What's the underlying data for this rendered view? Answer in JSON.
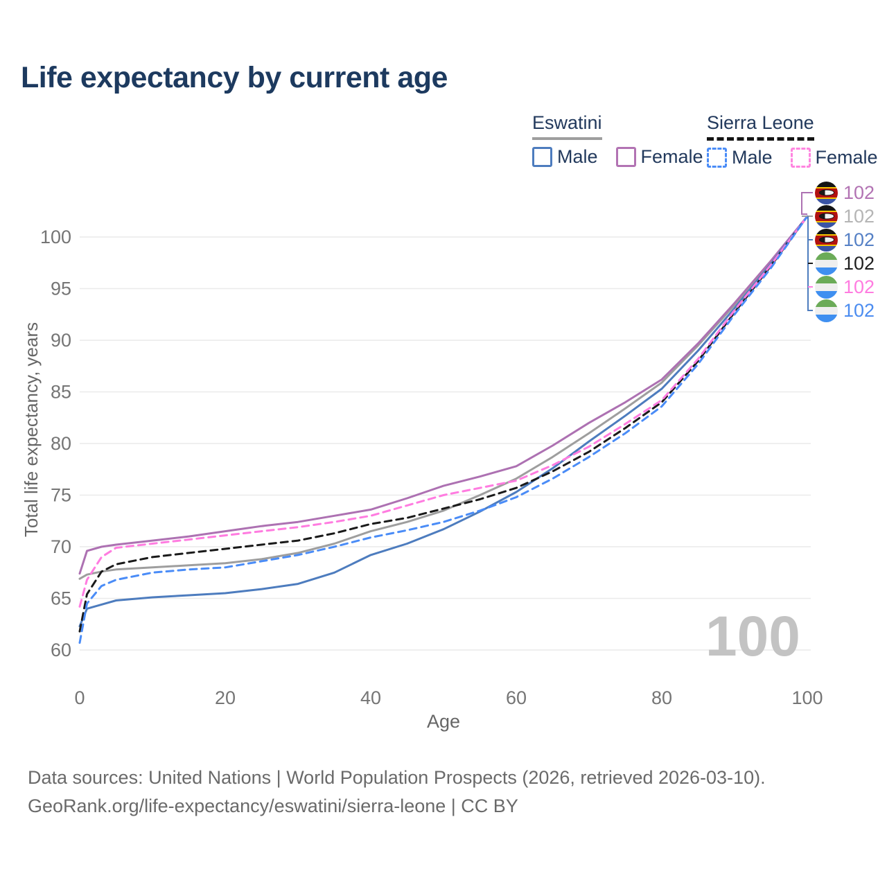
{
  "title": "Life expectancy by current age",
  "legend": {
    "eswatini": {
      "header": "Eswatini",
      "male_label": "Male",
      "female_label": "Female"
    },
    "sierra_leone": {
      "header": "Sierra Leone",
      "male_label": "Male",
      "female_label": "Female"
    }
  },
  "right_labels": [
    {
      "flag": "eswatini",
      "value": "102",
      "color": "#b273b3"
    },
    {
      "flag": "eswatini",
      "value": "102",
      "color": "#b5b5b5"
    },
    {
      "flag": "eswatini",
      "value": "102",
      "color": "#5580c5"
    },
    {
      "flag": "sierra-leone",
      "value": "102",
      "color": "#1f1f1f"
    },
    {
      "flag": "sierra-leone",
      "value": "102",
      "color": "#ff7ce0"
    },
    {
      "flag": "sierra-leone",
      "value": "102",
      "color": "#4b8cf0"
    }
  ],
  "watermark": "100",
  "footer": {
    "line1": "Data sources: United Nations | World Population Prospects (2026, retrieved 2026-03-10).",
    "line2": "GeoRank.org/life-expectancy/eswatini/sierra-leone | CC BY"
  },
  "chart_data": {
    "type": "line",
    "title": "Life expectancy by current age",
    "xlabel": "Age",
    "ylabel": "Total life expectancy, years",
    "xlim": [
      0,
      100
    ],
    "ylim": [
      60,
      102.5
    ],
    "xticks": [
      0,
      20,
      40,
      60,
      80,
      100
    ],
    "yticks": [
      60,
      65,
      70,
      75,
      80,
      85,
      90,
      95,
      100
    ],
    "grid": true,
    "legend_position": "top-right",
    "ages": [
      0,
      1,
      3,
      5,
      10,
      15,
      20,
      25,
      30,
      35,
      40,
      45,
      50,
      55,
      60,
      65,
      70,
      75,
      80,
      85,
      90,
      95,
      100
    ],
    "series": [
      {
        "name": "Eswatini Both sexes",
        "color": "#9e9e9e",
        "dashed": false,
        "values": [
          66.9,
          67.3,
          67.6,
          67.8,
          68.0,
          68.2,
          68.4,
          68.8,
          69.4,
          70.3,
          71.5,
          72.4,
          73.5,
          75.0,
          76.6,
          78.7,
          81.0,
          83.4,
          85.9,
          89.5,
          93.4,
          97.5,
          102
        ]
      },
      {
        "name": "Eswatini Female",
        "color": "#ad71b2",
        "dashed": false,
        "values": [
          67.4,
          69.6,
          70.0,
          70.2,
          70.6,
          71.0,
          71.5,
          72.0,
          72.4,
          73.0,
          73.6,
          74.7,
          75.9,
          76.8,
          77.8,
          79.8,
          82.0,
          84.0,
          86.2,
          89.7,
          93.6,
          97.7,
          102
        ]
      },
      {
        "name": "Eswatini Male",
        "color": "#4d7cbe",
        "dashed": false,
        "values": [
          62.3,
          64.0,
          64.4,
          64.8,
          65.1,
          65.3,
          65.5,
          65.9,
          66.4,
          67.5,
          69.2,
          70.3,
          71.7,
          73.4,
          75.3,
          77.6,
          80.2,
          82.7,
          85.3,
          89.0,
          93.1,
          97.4,
          102
        ]
      },
      {
        "name": "Sierra Leone Both sexes",
        "color": "#1a1a1a",
        "dashed": true,
        "values": [
          61.8,
          65.4,
          67.6,
          68.3,
          69.0,
          69.4,
          69.8,
          70.2,
          70.6,
          71.3,
          72.2,
          72.8,
          73.7,
          74.6,
          75.7,
          77.3,
          79.2,
          81.5,
          84.0,
          88.0,
          92.7,
          97.2,
          102
        ]
      },
      {
        "name": "Sierra Leone Female",
        "color": "#ff7ce0",
        "dashed": true,
        "values": [
          64.2,
          66.8,
          69.0,
          69.9,
          70.3,
          70.7,
          71.1,
          71.5,
          71.9,
          72.4,
          73.0,
          74.0,
          75.0,
          75.7,
          76.4,
          77.9,
          79.7,
          81.9,
          84.2,
          88.2,
          92.9,
          97.3,
          102
        ]
      },
      {
        "name": "Sierra Leone Male",
        "color": "#4a8cf7",
        "dashed": true,
        "values": [
          60.7,
          64.5,
          66.2,
          66.8,
          67.5,
          67.8,
          68.0,
          68.6,
          69.2,
          70.0,
          70.9,
          71.6,
          72.4,
          73.5,
          74.8,
          76.6,
          78.7,
          81.0,
          83.6,
          87.7,
          92.5,
          97.0,
          102
        ]
      }
    ],
    "end_value_labels": [
      "102",
      "102",
      "102",
      "102",
      "102",
      "102"
    ]
  }
}
